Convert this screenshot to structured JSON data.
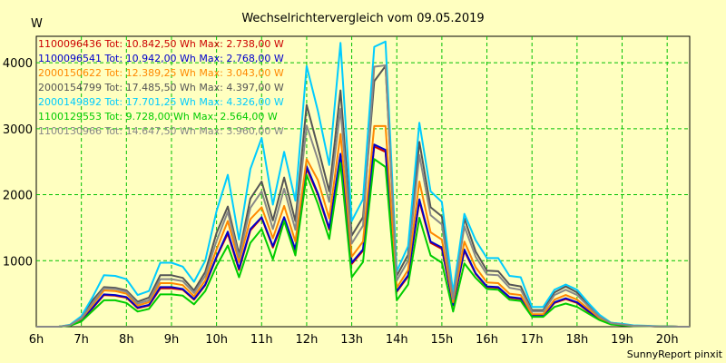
{
  "chart_data": {
    "type": "line",
    "title": "Wechselrichtervergleich vom 09.05.2019",
    "ylabel": "W",
    "footer": "SunnyReport pinxit",
    "xlim": [
      6,
      20.5
    ],
    "ylim": [
      0,
      4400
    ],
    "x_ticks": [
      6,
      7,
      8,
      9,
      10,
      11,
      12,
      13,
      14,
      15,
      16,
      17,
      18,
      19,
      20
    ],
    "x_tick_labels": [
      "6h",
      "7h",
      "8h",
      "9h",
      "10h",
      "11h",
      "12h",
      "13h",
      "14h",
      "15h",
      "16h",
      "17h",
      "18h",
      "19h",
      "20h"
    ],
    "y_ticks": [
      1000,
      2000,
      3000,
      4000
    ],
    "y_tick_labels": [
      "1000",
      "2000",
      "3000",
      "4000"
    ],
    "grid": true,
    "legend_position": "top-left",
    "x": [
      6.0,
      6.25,
      6.5,
      6.75,
      7.0,
      7.25,
      7.5,
      7.75,
      8.0,
      8.25,
      8.5,
      8.75,
      9.0,
      9.25,
      9.5,
      9.75,
      10.0,
      10.25,
      10.5,
      10.75,
      11.0,
      11.25,
      11.5,
      11.75,
      12.0,
      12.25,
      12.5,
      12.75,
      13.0,
      13.25,
      13.5,
      13.75,
      14.0,
      14.25,
      14.5,
      14.75,
      15.0,
      15.25,
      15.5,
      15.75,
      16.0,
      16.25,
      16.5,
      16.75,
      17.0,
      17.25,
      17.5,
      17.75,
      18.0,
      18.25,
      18.5,
      18.75,
      19.0,
      19.25,
      19.5,
      19.75,
      20.0,
      20.25,
      20.5
    ],
    "series": [
      {
        "name": "1100096436 Tot: 10.842,50 Wh Max: 2.738,00 W",
        "color": "#cc0000",
        "values": [
          0,
          0,
          0,
          20,
          100,
          280,
          480,
          470,
          440,
          280,
          320,
          580,
          580,
          560,
          410,
          630,
          1050,
          1410,
          860,
          1460,
          1650,
          1200,
          1630,
          1150,
          2400,
          2000,
          1470,
          2600,
          950,
          1150,
          2730,
          2650,
          530,
          760,
          1900,
          1270,
          1180,
          320,
          1150,
          800,
          600,
          590,
          440,
          420,
          160,
          160,
          360,
          420,
          360,
          230,
          110,
          40,
          25,
          10,
          8,
          5,
          3,
          0,
          0
        ]
      },
      {
        "name": "1100096541 Tot: 10.942,00 Wh Max: 2.768,00 W",
        "color": "#0000cc",
        "values": [
          0,
          0,
          0,
          20,
          110,
          290,
          490,
          480,
          450,
          290,
          330,
          600,
          600,
          570,
          420,
          640,
          1060,
          1440,
          880,
          1480,
          1660,
          1220,
          1660,
          1170,
          2430,
          2020,
          1490,
          2620,
          970,
          1170,
          2760,
          2680,
          540,
          780,
          1930,
          1290,
          1200,
          330,
          1170,
          810,
          610,
          600,
          450,
          430,
          170,
          170,
          370,
          430,
          370,
          240,
          115,
          42,
          27,
          10,
          8,
          5,
          3,
          0,
          0
        ]
      },
      {
        "name": "2000150622 Tot: 12.389,25 Wh Max: 3.043,00 W",
        "color": "#ff8800",
        "values": [
          0,
          0,
          0,
          20,
          120,
          330,
          550,
          540,
          500,
          320,
          370,
          660,
          660,
          630,
          460,
          700,
          1170,
          1600,
          980,
          1630,
          1810,
          1340,
          1830,
          1290,
          2540,
          2220,
          1640,
          2920,
          1060,
          1290,
          3040,
          3040,
          590,
          860,
          2200,
          1430,
          1320,
          370,
          1290,
          900,
          670,
          660,
          500,
          480,
          190,
          190,
          410,
          480,
          410,
          270,
          130,
          45,
          30,
          12,
          10,
          6,
          3,
          0,
          0
        ]
      },
      {
        "name": "2000154799 Tot: 17.485,50 Wh Max: 4.397,00 W",
        "color": "#555555",
        "values": [
          0,
          0,
          0,
          25,
          140,
          400,
          600,
          590,
          550,
          380,
          440,
          780,
          780,
          740,
          550,
          830,
          1420,
          1820,
          1100,
          1940,
          2200,
          1610,
          2260,
          1600,
          3360,
          2720,
          2050,
          3580,
          1380,
          1660,
          3720,
          3950,
          770,
          1090,
          2800,
          1810,
          1670,
          460,
          1640,
          1140,
          850,
          840,
          640,
          610,
          250,
          250,
          520,
          610,
          520,
          340,
          160,
          60,
          40,
          15,
          10,
          6,
          3,
          0,
          0
        ]
      },
      {
        "name": "2000149892 Tot: 17.701,25 Wh Max: 4.326,00 W",
        "color": "#00ccff",
        "values": [
          0,
          0,
          0,
          30,
          160,
          450,
          780,
          770,
          720,
          480,
          540,
          970,
          970,
          910,
          680,
          1000,
          1750,
          2300,
          1320,
          2390,
          2860,
          1850,
          2650,
          1910,
          3950,
          3270,
          2450,
          4300,
          1600,
          1930,
          4240,
          4320,
          840,
          1220,
          3090,
          2050,
          1890,
          520,
          1710,
          1310,
          1040,
          1040,
          770,
          750,
          300,
          300,
          560,
          640,
          560,
          360,
          180,
          60,
          45,
          20,
          15,
          8,
          4,
          0,
          0
        ]
      },
      {
        "name": "1100129553 Tot: 9.728,00 Wh Max: 2.564,00 W",
        "color": "#00cc00",
        "values": [
          0,
          0,
          0,
          15,
          80,
          240,
          400,
          400,
          360,
          230,
          270,
          490,
          490,
          470,
          340,
          540,
          920,
          1230,
          750,
          1270,
          1480,
          1020,
          1600,
          1080,
          2300,
          1860,
          1330,
          2480,
          750,
          980,
          2540,
          2420,
          400,
          640,
          1650,
          1080,
          970,
          230,
          960,
          740,
          570,
          560,
          410,
          390,
          150,
          150,
          300,
          350,
          300,
          200,
          100,
          35,
          20,
          10,
          8,
          5,
          3,
          0,
          0
        ]
      },
      {
        "name": "1100130966 Tot: 14.647,50 Wh Max: 3.960,00 W",
        "color": "#888888",
        "values": [
          0,
          0,
          0,
          22,
          130,
          360,
          580,
          570,
          530,
          350,
          400,
          720,
          720,
          690,
          510,
          770,
          1300,
          1740,
          1050,
          1800,
          2050,
          1480,
          2090,
          1470,
          3050,
          2530,
          1890,
          3300,
          1260,
          1530,
          3940,
          3960,
          700,
          1000,
          2600,
          1690,
          1550,
          420,
          1520,
          1060,
          790,
          780,
          590,
          560,
          230,
          230,
          480,
          560,
          480,
          310,
          150,
          55,
          35,
          14,
          10,
          6,
          3,
          0,
          0
        ]
      }
    ]
  }
}
